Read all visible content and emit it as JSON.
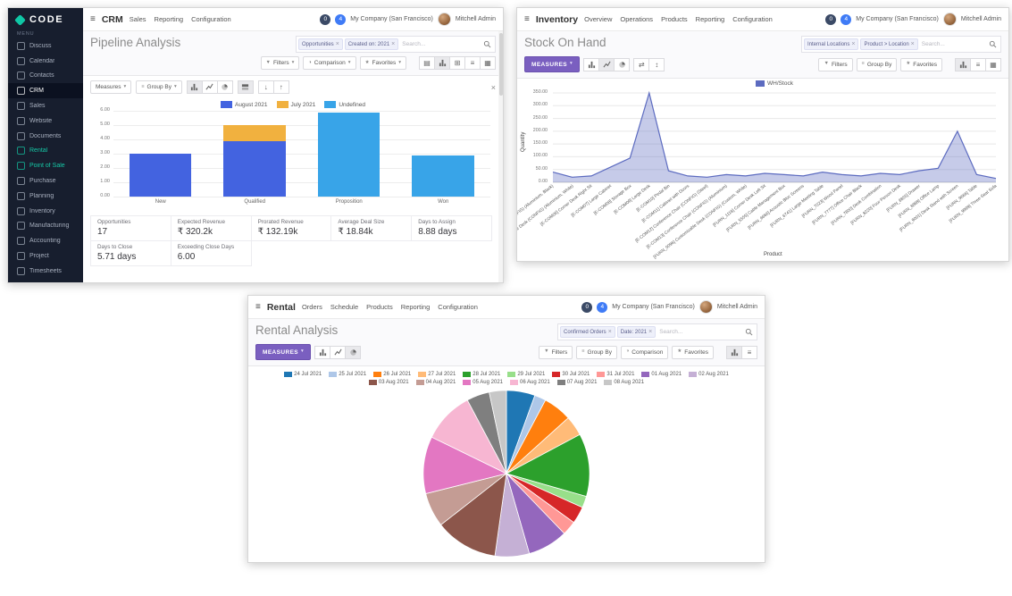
{
  "colors": {
    "sidebar_bg": "#171e2e",
    "accent_teal": "#0fc7a6",
    "measures_purple": "#7a5fc0",
    "badge_dark": "#3b4a66",
    "badge_blue": "#3f7bf6",
    "bar_august": "#4363e0",
    "bar_july": "#f1b13f",
    "bar_undefined": "#38a4e8",
    "line_stock": "#5c6bc0"
  },
  "icons": {
    "hamburger": "≡",
    "caret": "▾",
    "filter": "▼",
    "comparison": "◑",
    "favorites": "★",
    "close": "×",
    "sort_asc": "↑",
    "sort_desc": "↓",
    "flip_axis": "⇄",
    "expand": "↕",
    "pivot_view": "⊞",
    "list_view": "≡",
    "kanban_view": "▦",
    "spreadsheet": "▤",
    "group": "≡"
  },
  "sidebar": {
    "logo_text": "CODE",
    "menu_label": "MENU",
    "items": [
      {
        "label": "Discuss"
      },
      {
        "label": "Calendar"
      },
      {
        "label": "Contacts"
      },
      {
        "label": "CRM",
        "active": true
      },
      {
        "label": "Sales"
      },
      {
        "label": "Website"
      },
      {
        "label": "Documents"
      },
      {
        "label": "Rental",
        "accent": true
      },
      {
        "label": "Point of Sale",
        "accent": true
      },
      {
        "label": "Purchase"
      },
      {
        "label": "Planning"
      },
      {
        "label": "Inventory"
      },
      {
        "label": "Manufacturing"
      },
      {
        "label": "Accounting"
      },
      {
        "label": "Project"
      },
      {
        "label": "Timesheets"
      }
    ]
  },
  "crm": {
    "app_name": "CRM",
    "menus": [
      "Sales",
      "Reporting",
      "Configuration"
    ],
    "badge_messages": "0",
    "badge_activities": "4",
    "company": "My Company (San Francisco)",
    "user": "Mitchell Admin",
    "title": "Pipeline Analysis",
    "facets": [
      "Opportunities",
      "Created on: 2021"
    ],
    "search_placeholder": "Search...",
    "buttons": {
      "filters": "Filters",
      "comparison": "Comparison",
      "favorites": "Favorites",
      "measures": "Measures",
      "group_by": "Group By"
    },
    "kpis": [
      {
        "label": "Opportunities",
        "value": "17"
      },
      {
        "label": "Expected Revenue",
        "value": "₹ 320.2k"
      },
      {
        "label": "Prorated Revenue",
        "value": "₹ 132.19k"
      },
      {
        "label": "Average Deal Size",
        "value": "₹ 18.84k"
      },
      {
        "label": "Days to Assign",
        "value": "8.88 days"
      },
      {
        "label": "Days to Close",
        "value": "5.71 days"
      },
      {
        "label": "Exceeding Close Days",
        "value": "6.00"
      }
    ]
  },
  "inventory": {
    "app_name": "Inventory",
    "menus": [
      "Overview",
      "Operations",
      "Products",
      "Reporting",
      "Configuration"
    ],
    "badge_messages": "0",
    "badge_activities": "4",
    "company": "My Company (San Francisco)",
    "user": "Mitchell Admin",
    "title": "Stock On Hand",
    "facets": [
      "Internal Locations",
      "Product > Location"
    ],
    "search_placeholder": "Search...",
    "buttons": {
      "measures": "MEASURES",
      "filters": "Filters",
      "group_by": "Group By",
      "favorites": "Favorites"
    }
  },
  "rental": {
    "app_name": "Rental",
    "menus": [
      "Orders",
      "Schedule",
      "Products",
      "Reporting",
      "Configuration"
    ],
    "badge_messages": "0",
    "badge_activities": "4",
    "company": "My Company (San Francisco)",
    "user": "Mitchell Admin",
    "title": "Rental Analysis",
    "facets": [
      "Confirmed Orders",
      "Date: 2021"
    ],
    "search_placeholder": "Search...",
    "buttons": {
      "measures": "MEASURES",
      "filters": "Filters",
      "group_by": "Group By",
      "comparison": "Comparison",
      "favorites": "Favorites"
    }
  },
  "chart_data": [
    {
      "id": "pipeline_bar",
      "type": "bar",
      "stacked": true,
      "title": "Pipeline Analysis",
      "categories": [
        "New",
        "Qualified",
        "Proposition",
        "Won"
      ],
      "series": [
        {
          "name": "August 2021",
          "color": "#4363e0",
          "values": [
            3.0,
            3.9,
            0,
            0
          ]
        },
        {
          "name": "July 2021",
          "color": "#f1b13f",
          "values": [
            0,
            1.1,
            0,
            0
          ]
        },
        {
          "name": "Undefined",
          "color": "#38a4e8",
          "values": [
            0,
            0,
            5.9,
            2.9
          ]
        }
      ],
      "ylim": [
        0,
        6
      ],
      "yticks": [
        "0.00",
        "1.00",
        "2.00",
        "3.00",
        "4.00",
        "5.00",
        "6.00"
      ],
      "grid": true,
      "legend_position": "top"
    },
    {
      "id": "stock_line",
      "type": "line",
      "title": "Stock On Hand",
      "legend": [
        {
          "name": "WH/Stock",
          "color": "#5c6bc0"
        }
      ],
      "fill": "rgba(92,107,192,0.35)",
      "ylabel": "Quantity",
      "xlabel": "Product",
      "ylim": [
        0,
        350
      ],
      "yticks": [
        "0.00",
        "50.00",
        "100.00",
        "150.00",
        "200.00",
        "250.00",
        "300.00",
        "350.00"
      ],
      "x": [
        "[DESK0004] Customizable Desk (CONFIG) (Aluminium, Black)",
        "[DESK0005] Customizable Desk (CONFIG) (Aluminium, White)",
        "[E-COM06] Corner Desk Right Sit",
        "[E-COM07] Large Cabinet",
        "[E-COM08] Storage Box",
        "[E-COM09] Large Desk",
        "[E-COM10] Pedal Bin",
        "[E-COM11] Cabinet with Doors",
        "[E-COM12] Conference Chair (CONFIG) (Steel)",
        "[E-COM13] Conference Chair (CONFIG) (Aluminium)",
        "[FURN_0096] Customizable Desk (CONFIG) (Custom, White)",
        "[FURN_1118] Corner Desk Left Sit",
        "[FURN_5555] Cable Management Box",
        "[FURN_6666] Acoustic Bloc Screens",
        "[FURN_6741] Large Meeting Table",
        "[FURN_7023] Wood Panel",
        "[FURN_7777] Office Chair Black",
        "[FURN_7800] Desk Combination",
        "[FURN_8220] Four Person Desk",
        "[FURN_8855] Drawer",
        "[FURN_8888] Office Lamp",
        "[FURN_9001] Desk Stand with Screen",
        "[FURN_9666] Table",
        "[FURN_9999] Three-Seat Sofa"
      ],
      "values": [
        40,
        20,
        25,
        60,
        95,
        350,
        45,
        25,
        20,
        30,
        25,
        35,
        30,
        25,
        40,
        30,
        25,
        35,
        30,
        45,
        55,
        200,
        30,
        15
      ],
      "grid": true,
      "legend_position": "top"
    },
    {
      "id": "rental_pie",
      "type": "pie",
      "title": "Rental Analysis",
      "labels": [
        "24 Jul 2021",
        "25 Jul 2021",
        "26 Jul 2021",
        "27 Jul 2021",
        "28 Jul 2021",
        "29 Jul 2021",
        "30 Jul 2021",
        "31 Jul 2021",
        "01 Aug 2021",
        "02 Aug 2021",
        "03 Aug 2021",
        "04 Aug 2021",
        "05 Aug 2021",
        "06 Aug 2021",
        "07 Aug 2021",
        "08 Aug 2021"
      ],
      "colors": [
        "#1f77b4",
        "#aec7e8",
        "#ff7f0e",
        "#ffbb78",
        "#2ca02c",
        "#98df8a",
        "#d62728",
        "#ff9896",
        "#9467bd",
        "#c5b0d5",
        "#8c564b",
        "#c49c94",
        "#e377c2",
        "#f7b6d2",
        "#7f7f7f",
        "#c7c7c7"
      ],
      "values": [
        5,
        2,
        5,
        3.5,
        11,
        2,
        3,
        2.5,
        7,
        6,
        11,
        6,
        10,
        9,
        4,
        3
      ],
      "legend_position": "top",
      "legend_rows": [
        10,
        6
      ]
    }
  ]
}
